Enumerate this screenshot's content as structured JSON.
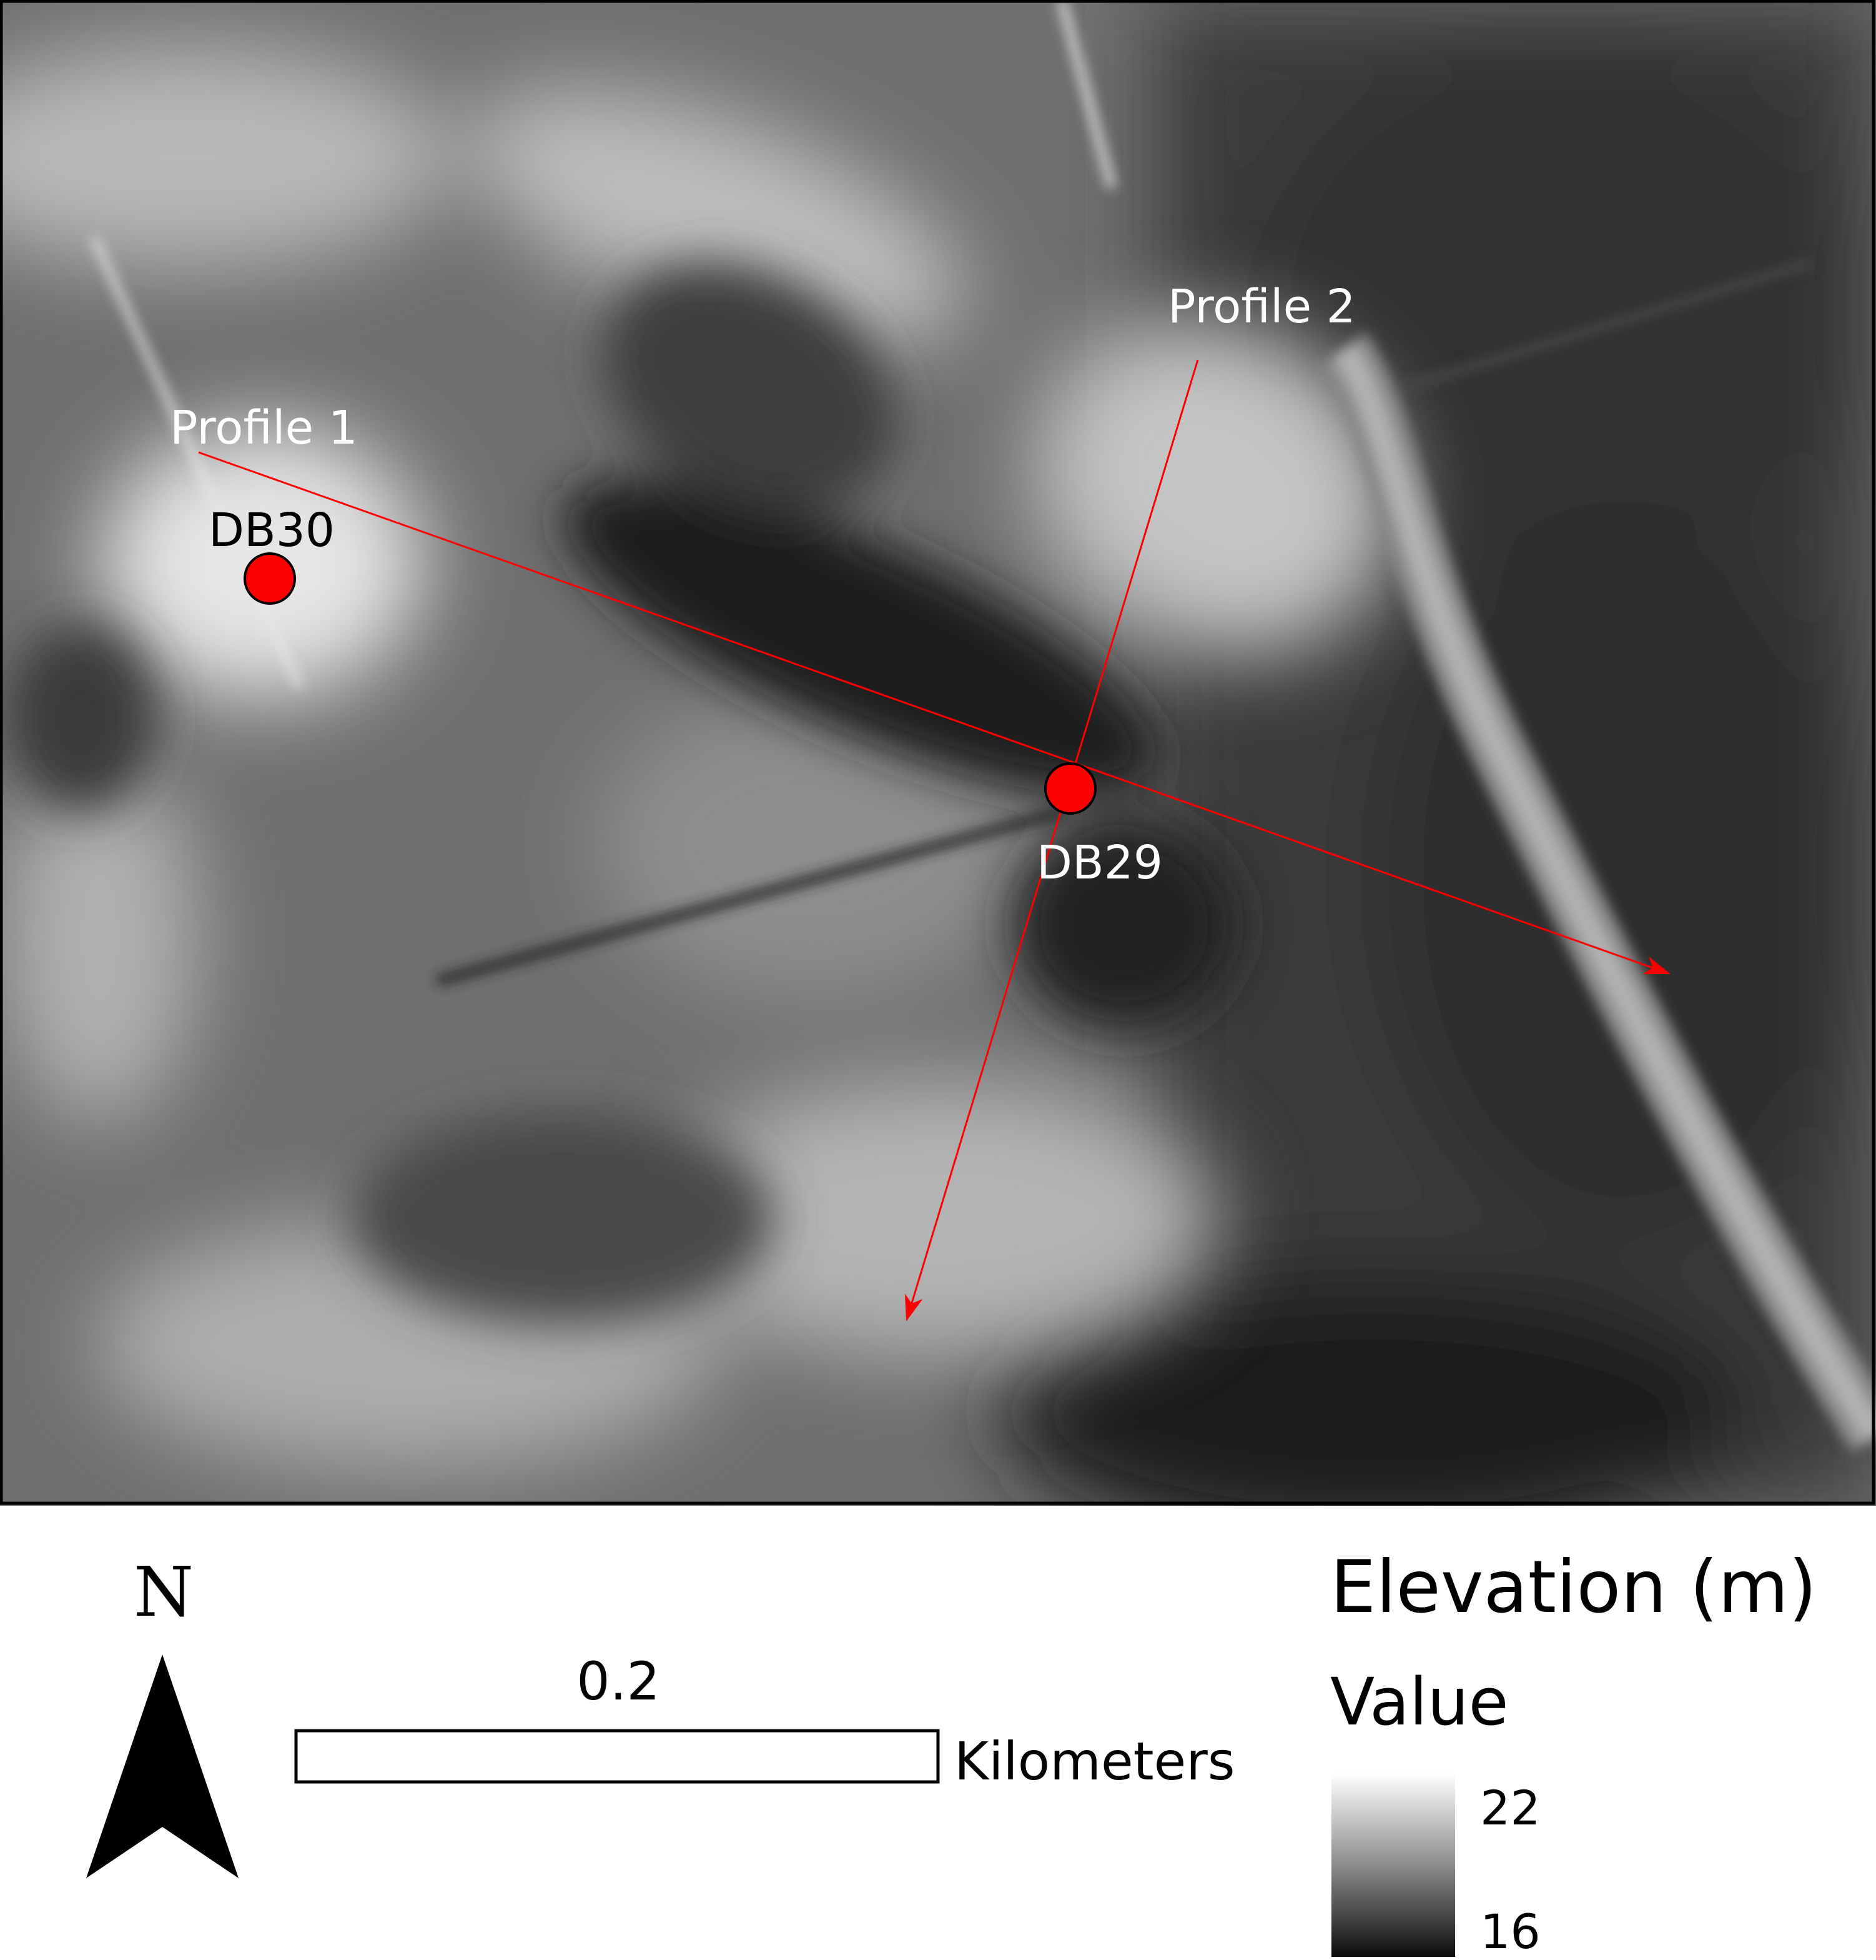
{
  "map": {
    "profiles": [
      {
        "label": "Profile 1"
      },
      {
        "label": "Profile 2"
      }
    ],
    "boreholes": [
      {
        "label": "DB30"
      },
      {
        "label": "DB29"
      }
    ],
    "colors": {
      "profile_line": "#ff0000",
      "borehole_fill": "#ff0000",
      "borehole_stroke": "#000000",
      "frame": "#000000"
    }
  },
  "north_arrow": {
    "letter": "N",
    "icon": "north-arrow-icon"
  },
  "scale_bar": {
    "value": "0.2",
    "unit": "Kilometers"
  },
  "legend": {
    "title": "Elevation (m)",
    "subtitle": "Value",
    "max_label": "22",
    "min_label": "16",
    "ramp": [
      "#ffffff",
      "#8c8c8c",
      "#0d0d0d"
    ]
  }
}
